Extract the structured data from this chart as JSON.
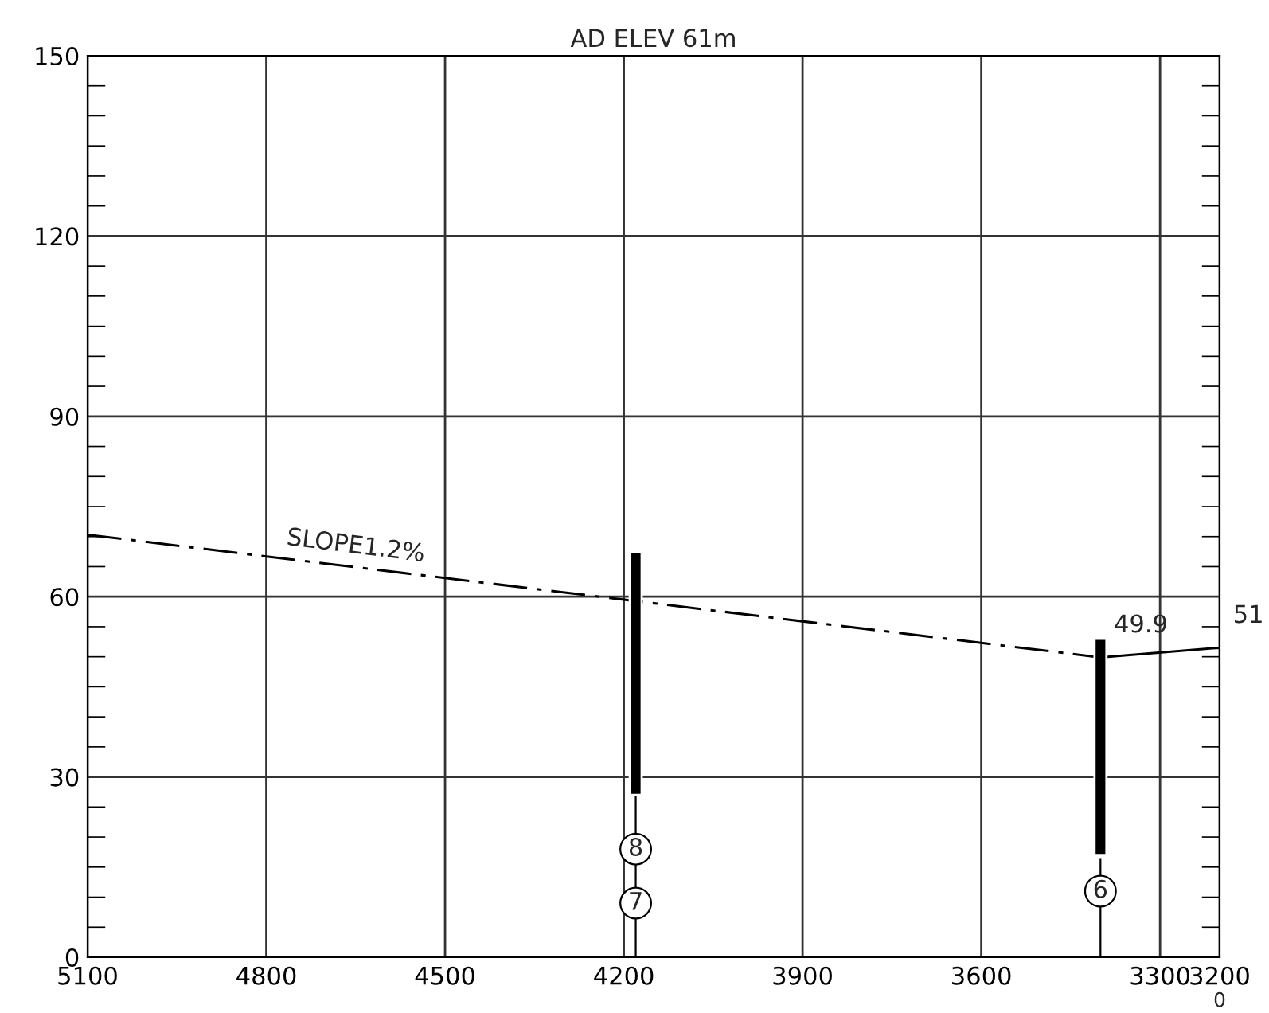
{
  "chart_data": {
    "type": "bar",
    "title": "AD ELEV 61m",
    "series": [
      {
        "type": "line",
        "line_style": "dashed",
        "color": "#000000",
        "x": [
          5100,
          3400
        ],
        "values": [
          70.3,
          49.9
        ]
      },
      {
        "type": "line",
        "line_style": "solid",
        "color": "#000000",
        "x": [
          3400,
          3200
        ],
        "values": [
          49.9,
          51.5
        ]
      },
      {
        "type": "line",
        "line_style": "solid",
        "color": "#000000",
        "x": [
          4180,
          4180
        ],
        "values": [
          0,
          27
        ]
      },
      {
        "type": "line",
        "line_style": "solid",
        "color": "#000000",
        "x": [
          3400,
          3400
        ],
        "values": [
          0,
          16.5
        ]
      },
      {
        "color": "#000000",
        "x": [
          4180,
          3400
        ],
        "values": [
          40.5,
          36
        ],
        "base": [
          27,
          17
        ]
      }
    ],
    "xlim": [
      5100,
      3200
    ],
    "xticks": [
      5100,
      4800,
      4500,
      4200,
      3900,
      3600,
      3300,
      3200
    ],
    "ylim": [
      0,
      150
    ],
    "yticks": [
      0,
      30,
      60,
      90,
      120,
      150
    ],
    "grid": true,
    "annotations": [
      {
        "text": "SLOPE1.2%",
        "x": 4650,
        "y": 65
      },
      {
        "text": "49.9",
        "x": 3400,
        "y": 49.9
      },
      {
        "text": "51",
        "x": 3200,
        "y": 51.5
      },
      {
        "text": "8",
        "x": 4180,
        "y": 18
      },
      {
        "text": "7",
        "x": 4180,
        "y": 9
      },
      {
        "text": "6",
        "x": 3400,
        "y": 11
      },
      "0"
    ]
  }
}
